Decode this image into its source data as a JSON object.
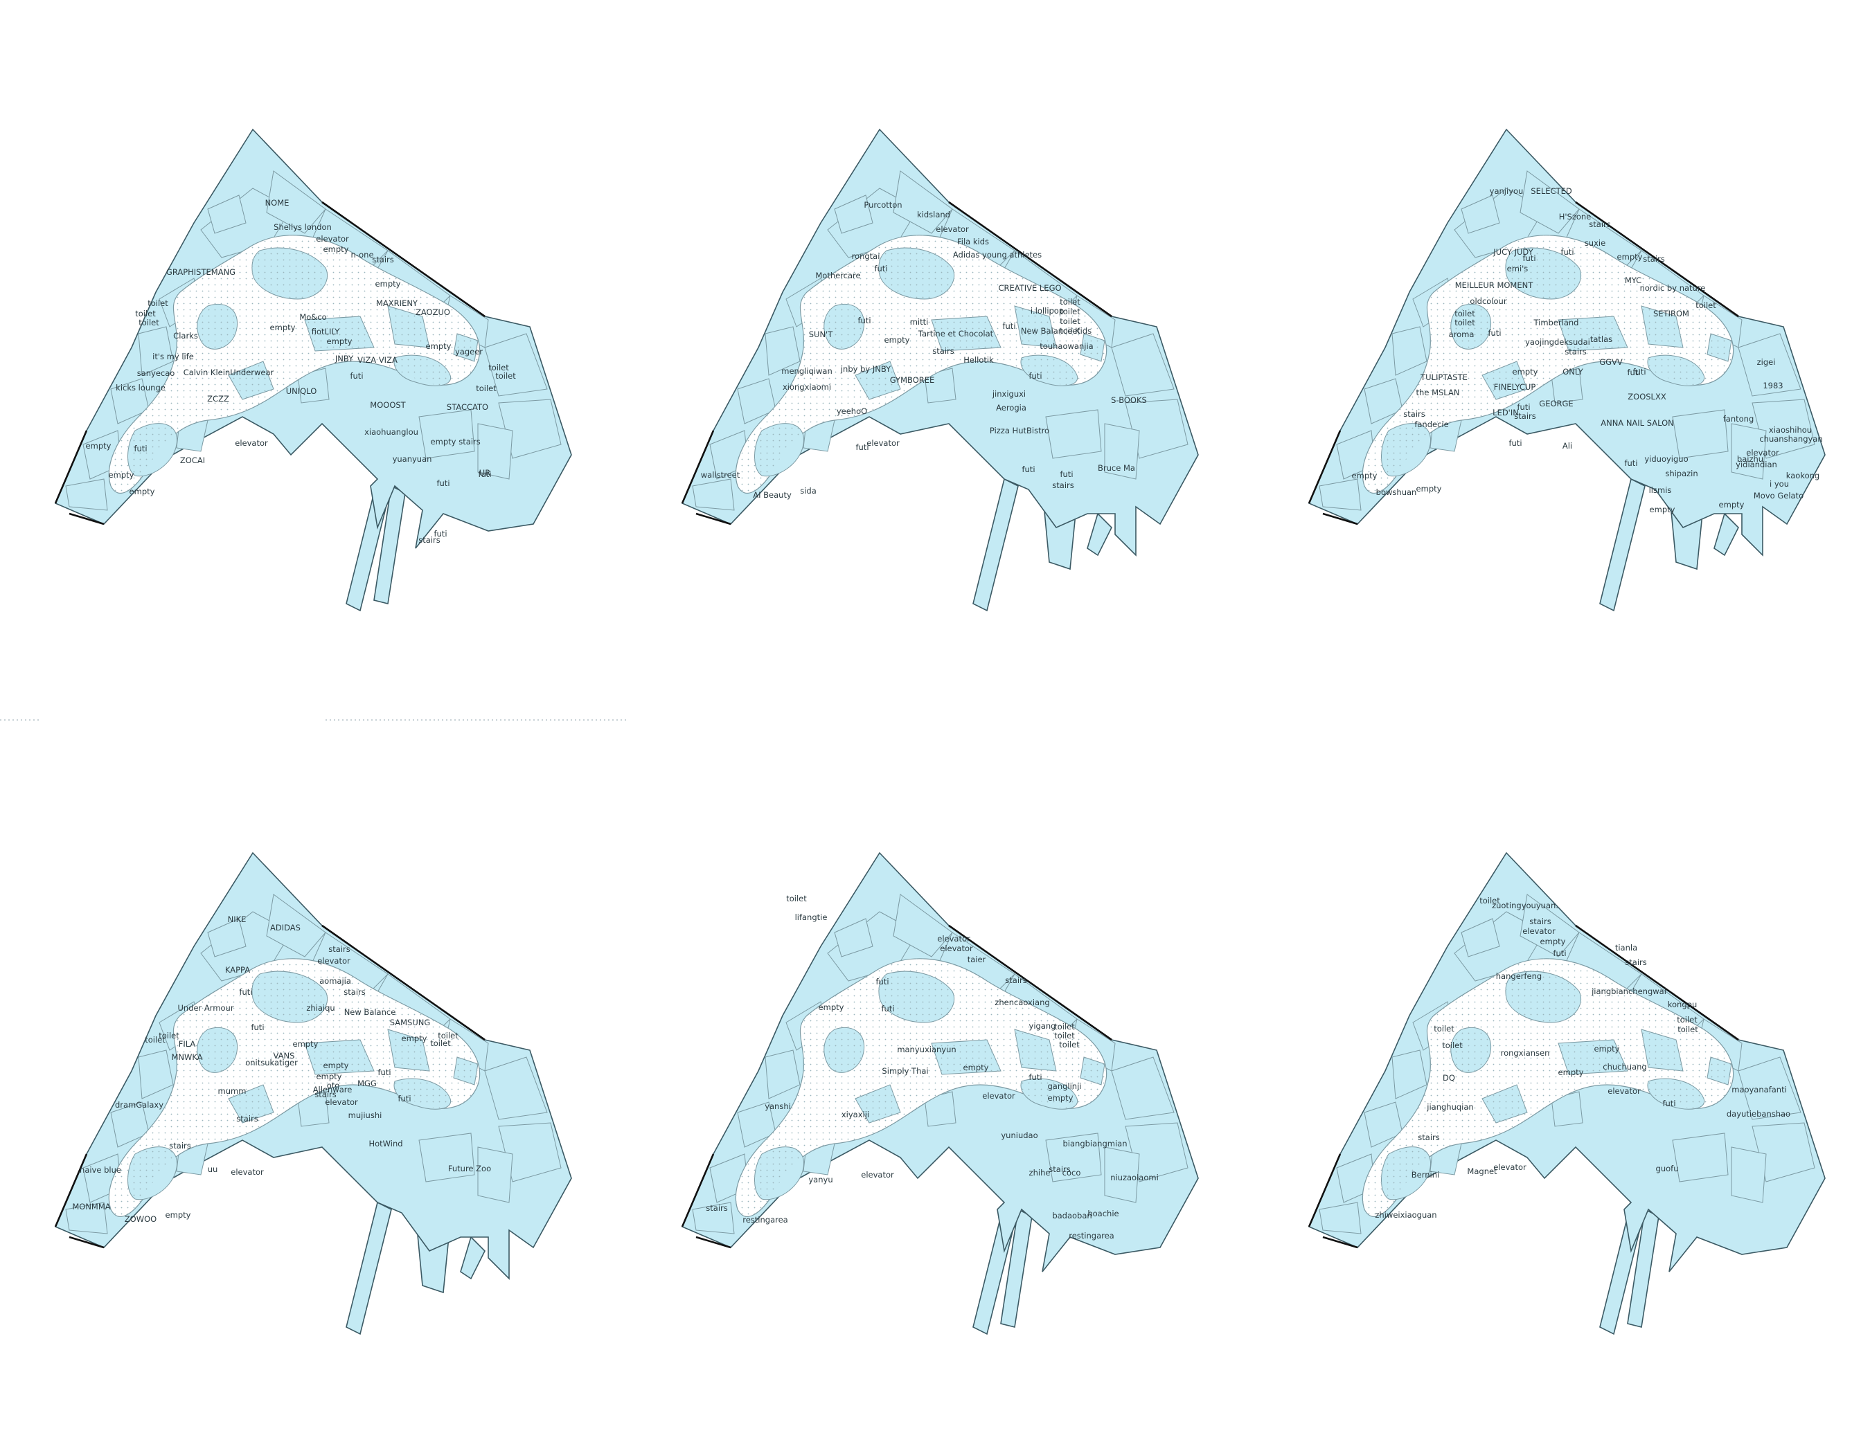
{
  "colors": {
    "shop_fill": "#c4eaf4",
    "shop_stroke": "#6f8c95",
    "corridor": "#ffffff",
    "boundary": "#111111"
  },
  "floors": [
    {
      "labels": [
        "NOME",
        "Shellys london",
        "elevator",
        "empty",
        "n-one",
        "stairs",
        "empty",
        "MAXRIENY",
        "ZAOZUO",
        "empty",
        "GRAPHISTEMANG",
        "toilet",
        "toilet",
        "toilet",
        "Clarks",
        "it's my life",
        "sanyecao",
        "kicks lounge",
        "Calvin KleinUnderwear",
        "Mo&co",
        "empty",
        "fiotLILY",
        "empty",
        "JNBY",
        "UNIQLO",
        "VIZA VIZA",
        "MOOOST",
        "ZCZZ",
        "futi",
        "STACCATO",
        "yageer",
        "toilet",
        "toilet",
        "toilet",
        "xiaohuanglou",
        "stairs",
        "yuanyuan",
        "UR",
        "futi",
        "futi",
        "futi",
        "stairs",
        "empty",
        "futi",
        "ZOCAI",
        "elevator",
        "empty",
        "empty",
        "empty"
      ]
    },
    {
      "labels": [
        "Purcotton",
        "kidsland",
        "elevator",
        "Fila kids",
        "Adidas young athletes",
        "rongtai",
        "futi",
        "Mothercare",
        "CREATIVE LEGO",
        "toilet",
        "toilet",
        "toilet",
        "toilet",
        "i.lollipop",
        "New Balance Kids",
        "mitti",
        "Tartine et Chocolat",
        "futi",
        "SUN'T",
        "futi",
        "touhaowanjia",
        "stairs",
        "empty",
        "Hellotik",
        "mengliqiwan",
        "jnby by JNBY",
        "futi",
        "xiongxiaomi",
        "GYMBOREE",
        "jinxiguxi",
        "Aerogia",
        "S-BOOKS",
        "yeehoO",
        "Pizza HutBistro",
        "futi",
        "elevator",
        "wallstreet",
        "sida",
        "AI Beauty",
        "futi",
        "futi",
        "stairs",
        "Bruce Ma"
      ]
    },
    {
      "labels": [
        "yanjiyou",
        "SELECTED",
        "H'Szone",
        "stairs",
        "JUCY JUDY",
        "futi",
        "suxie",
        "empty",
        "futi",
        "stairs",
        "emi's",
        "MYC",
        "MEILLEUR MOMENT",
        "nordic by nature",
        "oldcolour",
        "toilet",
        "toilet",
        "toilet",
        "SETIROM",
        "Timberland",
        "futi",
        "aroma",
        "tatlas",
        "yaojingdeksudai",
        "stairs",
        "GGVV",
        "futi",
        "zigei",
        "TULIPTASTE",
        "empty",
        "ONLY",
        "futi",
        "1983",
        "FINELYCUP",
        "the MSLAN",
        "futi",
        "stairs",
        "ZOOSLXX",
        "GEORGE",
        "LED'IN",
        "stairs",
        "fandecie",
        "ANNA NAIL SALON",
        "fantong",
        "xiaoshihou",
        "chuanshangyan",
        "elevator",
        "futi",
        "Ali",
        "yidiandian",
        "baizhu",
        "futi",
        "yiduoyiguo",
        "empty",
        "empty",
        "bowshuan",
        "empty",
        "shipazin",
        "lismis",
        "i you",
        "kaokong",
        "Movo Gelato",
        "empty"
      ]
    },
    {
      "labels": [
        "NIKE",
        "ADIDAS",
        "stairs",
        "elevator",
        "KAPPA",
        "aomajia",
        "futi",
        "stairs",
        "Under Armour",
        "zhiaiqu",
        "futi",
        "New Balance",
        "SAMSUNG",
        "toilet",
        "toilet",
        "toilet",
        "toilet",
        "empty",
        "FILA",
        "empty",
        "VANS",
        "empty",
        "MNWKA",
        "onitsukatiger",
        "empty",
        "oto",
        "futi",
        "stairs",
        "Allenware",
        "MGG",
        "elevator",
        "dramGalaxy",
        "mumm",
        "futi",
        "stairs",
        "mujiushi",
        "HotWind",
        "stairs",
        "Future Zoo",
        "naive blue",
        "uu",
        "elevator",
        "MONMMA",
        "ZOWOO",
        "empty"
      ]
    },
    {
      "labels": [
        "toilet",
        "lifangtie",
        "elevator",
        "elevator",
        "taier",
        "futi",
        "empty",
        "stairs",
        "zhencaoxiang",
        "futi",
        "yigang",
        "toilet",
        "toilet",
        "toilet",
        "manyuxianyun",
        "Simply Thai",
        "empty",
        "futi",
        "ganglinji",
        "empty",
        "yanshi",
        "elevator",
        "xiyaxiji",
        "yuniudao",
        "biangbiangmian",
        "stairs",
        "zhihe",
        "coco",
        "niuzaolaomi",
        "elevator",
        "yanyu",
        "stairs",
        "restingarea",
        "badaoban",
        "hoachie",
        "restingarea"
      ]
    },
    {
      "labels": [
        "toilet",
        "zuotingyouyuan.",
        "stairs",
        "elevator",
        "empty",
        "tianla",
        "futi",
        "stairs",
        "hangerfeng",
        "jiangbianchengwai",
        "kongpu",
        "toilet",
        "toilet",
        "toilet",
        "toilet",
        "empty",
        "rongxiansen",
        "chuchuang",
        "DQ",
        "empty",
        "elevator",
        "futi",
        "jianghuqian",
        "maoyanafanti",
        "dayutiebanshao",
        "stairs",
        "guofu",
        "Bernini",
        "Magnet",
        "elevator",
        "zhiweixiaoguan"
      ]
    }
  ]
}
